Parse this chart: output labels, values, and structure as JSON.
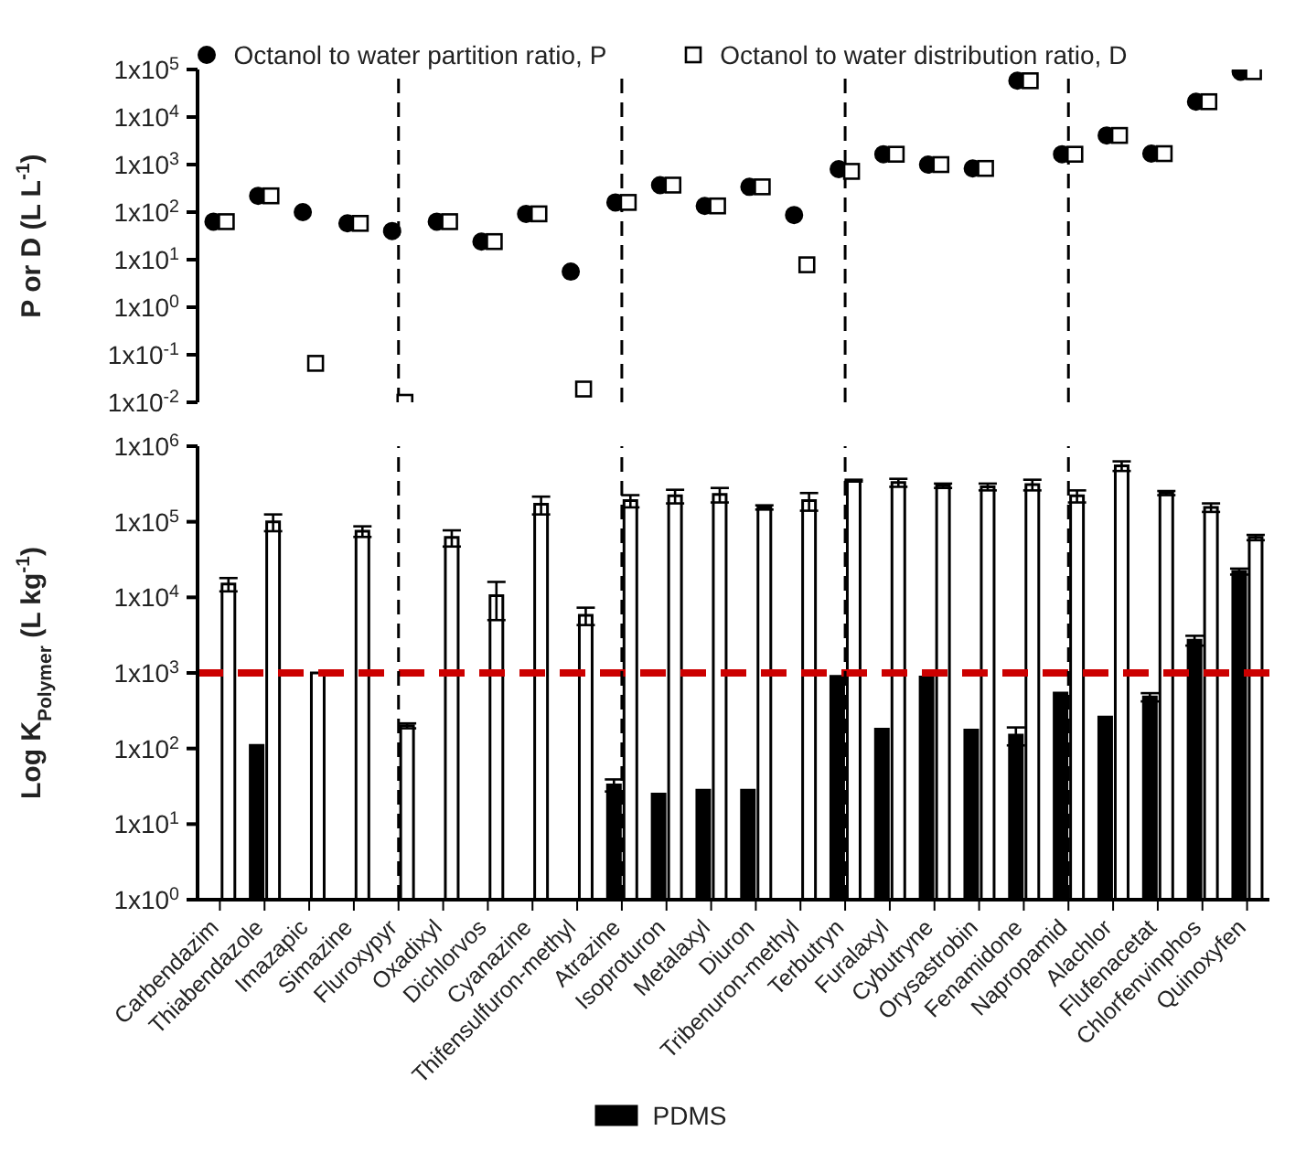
{
  "chart_data": [
    {
      "type": "scatter",
      "ylabel": "P or D (L L$^{-1}$)",
      "log": true,
      "ylim": [
        0.01,
        100000
      ],
      "yticks": [
        {
          "value": 0.01,
          "label": "1x10$^{-2}$"
        },
        {
          "value": 0.1,
          "label": "1x10$^{-1}$"
        },
        {
          "value": 1,
          "label": "1x10$^{0}$"
        },
        {
          "value": 10,
          "label": "1x10$^{1}$"
        },
        {
          "value": 100,
          "label": "1x10$^{2}$"
        },
        {
          "value": 1000,
          "label": "1x10$^{3}$"
        },
        {
          "value": 10000,
          "label": "1x10$^{4}$"
        },
        {
          "value": 100000,
          "label": "1x10$^{5}$"
        }
      ],
      "tick_labels": "y",
      "legend": "top",
      "grid": false,
      "categories": [
        "Carbendazim",
        "Thiabendazole",
        "Imazapic",
        "Simazine",
        "Fluroxypyr",
        "Oxadixyl",
        "Dichlorvos",
        "Cyanazine",
        "Thifensulfuron-methyl",
        "Atrazine",
        "Isoproturon",
        "Metalaxyl",
        "Diuron",
        "Tribenuron-methyl",
        "Terbutryn",
        "Furalaxyl",
        "Cybutryne",
        "Orysastrobin",
        "Fenamidone",
        "Napropamid",
        "Alachlor",
        "Flufenacetat",
        "Chlorfenvinphos",
        "Quinoxyfen"
      ],
      "series": [
        {
          "name": "Octanol to water partition ratio, P",
          "color": "#000000",
          "marker": "circle",
          "values": [
            63,
            220,
            100,
            58,
            40,
            63,
            24,
            92,
            5.6,
            160,
            370,
            135,
            340,
            87,
            800,
            1650,
            1000,
            830,
            58000,
            1650,
            4100,
            1700,
            21000,
            90000
          ]
        },
        {
          "name": "Octanol to water distribution ratio, D",
          "color": "#000000",
          "marker": "square",
          "values": [
            63,
            220,
            0.066,
            58,
            0.01,
            63,
            24,
            92,
            0.019,
            160,
            370,
            135,
            340,
            7.8,
            720,
            1650,
            1000,
            830,
            58000,
            1650,
            4100,
            1700,
            21000,
            90000
          ]
        }
      ],
      "ref_lines": [
        {
          "axis": "x",
          "value": "Fluroxypyr",
          "color": "#000000",
          "line_style": "dashed"
        },
        {
          "axis": "x",
          "value": "Atrazine",
          "color": "#000000",
          "line_style": "dashed"
        },
        {
          "axis": "x",
          "value": "Terbutryn",
          "color": "#000000",
          "line_style": "dashed"
        },
        {
          "axis": "x",
          "value": "Napropamid",
          "color": "#000000",
          "line_style": "dashed"
        }
      ]
    },
    {
      "type": "bar",
      "ylabel": "Log K$_{Polymer}$ (L kg$^{-1}$)",
      "log": true,
      "ylim": [
        1,
        1000000
      ],
      "yticks": [
        {
          "value": 1,
          "label": "1x10$^{0}$"
        },
        {
          "value": 10,
          "label": "1x10$^{1}$"
        },
        {
          "value": 100,
          "label": "1x10$^{2}$"
        },
        {
          "value": 1000,
          "label": "1x10$^{3}$"
        },
        {
          "value": 10000,
          "label": "1x10$^{4}$"
        },
        {
          "value": 100000,
          "label": "1x10$^{5}$"
        },
        {
          "value": 1000000,
          "label": "1x10$^{6}$"
        }
      ],
      "legend": "bottom",
      "grid": false,
      "categories": [
        "Carbendazim",
        "Thiabendazole",
        "Imazapic",
        "Simazine",
        "Fluroxypyr",
        "Oxadixyl",
        "Dichlorvos",
        "Cyanazine",
        "Thifensulfuron-methyl",
        "Atrazine",
        "Isoproturon",
        "Metalaxyl",
        "Diuron",
        "Tribenuron-methyl",
        "Terbutryn",
        "Furalaxyl",
        "Cybutryne",
        "Orysastrobin",
        "Fenamidone",
        "Napropamid",
        "Alachlor",
        "Flufenacetat",
        "Chlorfenvinphos",
        "Quinoxyfen"
      ],
      "series": [
        {
          "name": "PDMS",
          "color": "#000000",
          "values": [
            null,
            110,
            null,
            null,
            null,
            null,
            null,
            null,
            null,
            33,
            25,
            28,
            28,
            null,
            900,
            180,
            880,
            175,
            150,
            540,
            260,
            480,
            2700,
            22000
          ],
          "errors": [
            null,
            null,
            null,
            null,
            null,
            null,
            null,
            null,
            null,
            6,
            null,
            null,
            null,
            null,
            null,
            null,
            null,
            null,
            40,
            null,
            null,
            60,
            400,
            2000
          ]
        },
        {
          "color": "#ffffff",
          "values": [
            15000,
            100000,
            1000,
            75000,
            200,
            62000,
            10500,
            170000,
            5800,
            190000,
            220000,
            230000,
            155000,
            190000,
            350000,
            330000,
            300000,
            290000,
            310000,
            220000,
            550000,
            240000,
            155000,
            62000
          ],
          "errors": [
            3000,
            25000,
            null,
            12000,
            15,
            15000,
            5500,
            45000,
            1500,
            35000,
            45000,
            50000,
            10000,
            50000,
            10000,
            40000,
            20000,
            30000,
            50000,
            40000,
            80000,
            15000,
            20000,
            5000
          ]
        }
      ],
      "ref_lines": [
        {
          "axis": "y",
          "value": 1000,
          "color": "#cc0000",
          "line_style": "dashed"
        },
        {
          "axis": "x",
          "value": "Fluroxypyr",
          "color": "#000000",
          "line_style": "dashed"
        },
        {
          "axis": "x",
          "value": "Atrazine",
          "color": "#000000",
          "line_style": "dashed"
        },
        {
          "axis": "x",
          "value": "Terbutryn",
          "color": "#000000",
          "line_style": "dashed"
        },
        {
          "axis": "x",
          "value": "Napropamid",
          "color": "#000000",
          "line_style": "dashed"
        }
      ]
    }
  ]
}
